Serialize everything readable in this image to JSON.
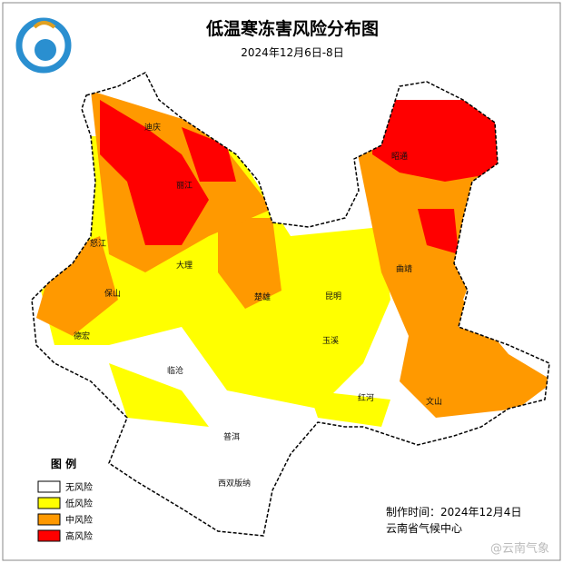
{
  "header": {
    "title": "低温寒冻害风险分布图",
    "subtitle": "2024年12月6日-8日"
  },
  "legend": {
    "title": "图 例",
    "items": [
      {
        "label": "无风险",
        "color": "#ffffff"
      },
      {
        "label": "低风险",
        "color": "#ffff00"
      },
      {
        "label": "中风险",
        "color": "#ff9900"
      },
      {
        "label": "高风险",
        "color": "#ff0000"
      }
    ]
  },
  "cities": [
    "迪庆",
    "丽江",
    "怒江",
    "大理",
    "保山",
    "德宏",
    "临沧",
    "楚雄",
    "昆明",
    "玉溪",
    "曲靖",
    "昭通",
    "红河",
    "文山",
    "普洱",
    "西双版纳"
  ],
  "footer": {
    "made": "制作时间：2024年12月4日",
    "org": "云南省气候中心"
  },
  "watermark": "@云南气象"
}
